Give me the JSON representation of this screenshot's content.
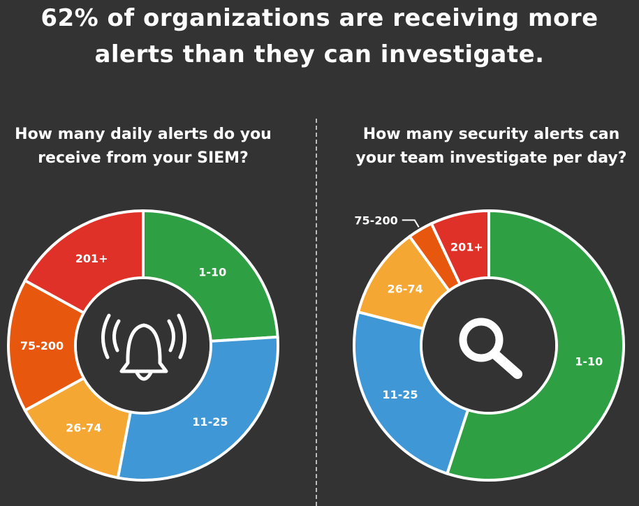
{
  "headline": {
    "line1": "62% of organizations are receiving more",
    "line2": "alerts than they can investigate."
  },
  "chart_data": [
    {
      "type": "pie",
      "variant": "donut",
      "title_lines": [
        "How many daily alerts do you",
        "receive from your SIEM?"
      ],
      "center_icon": "alarm-bell-icon",
      "categories": [
        "1-10",
        "11-25",
        "26-74",
        "75-200",
        "201+"
      ],
      "values": [
        24,
        29,
        14,
        16,
        17
      ],
      "unit": "%",
      "colors": [
        "#2ea043",
        "#3f97d6",
        "#f5a733",
        "#e8570e",
        "#e03128"
      ]
    },
    {
      "type": "pie",
      "variant": "donut",
      "title_lines": [
        "How many security alerts can",
        "your team investigate per day?"
      ],
      "center_icon": "magnifying-glass-icon",
      "categories": [
        "1-10",
        "11-25",
        "26-74",
        "75-200",
        "201+"
      ],
      "values": [
        55,
        24,
        11,
        3,
        7
      ],
      "unit": "%",
      "colors": [
        "#2ea043",
        "#3f97d6",
        "#f5a733",
        "#e8570e",
        "#e03128"
      ]
    }
  ]
}
